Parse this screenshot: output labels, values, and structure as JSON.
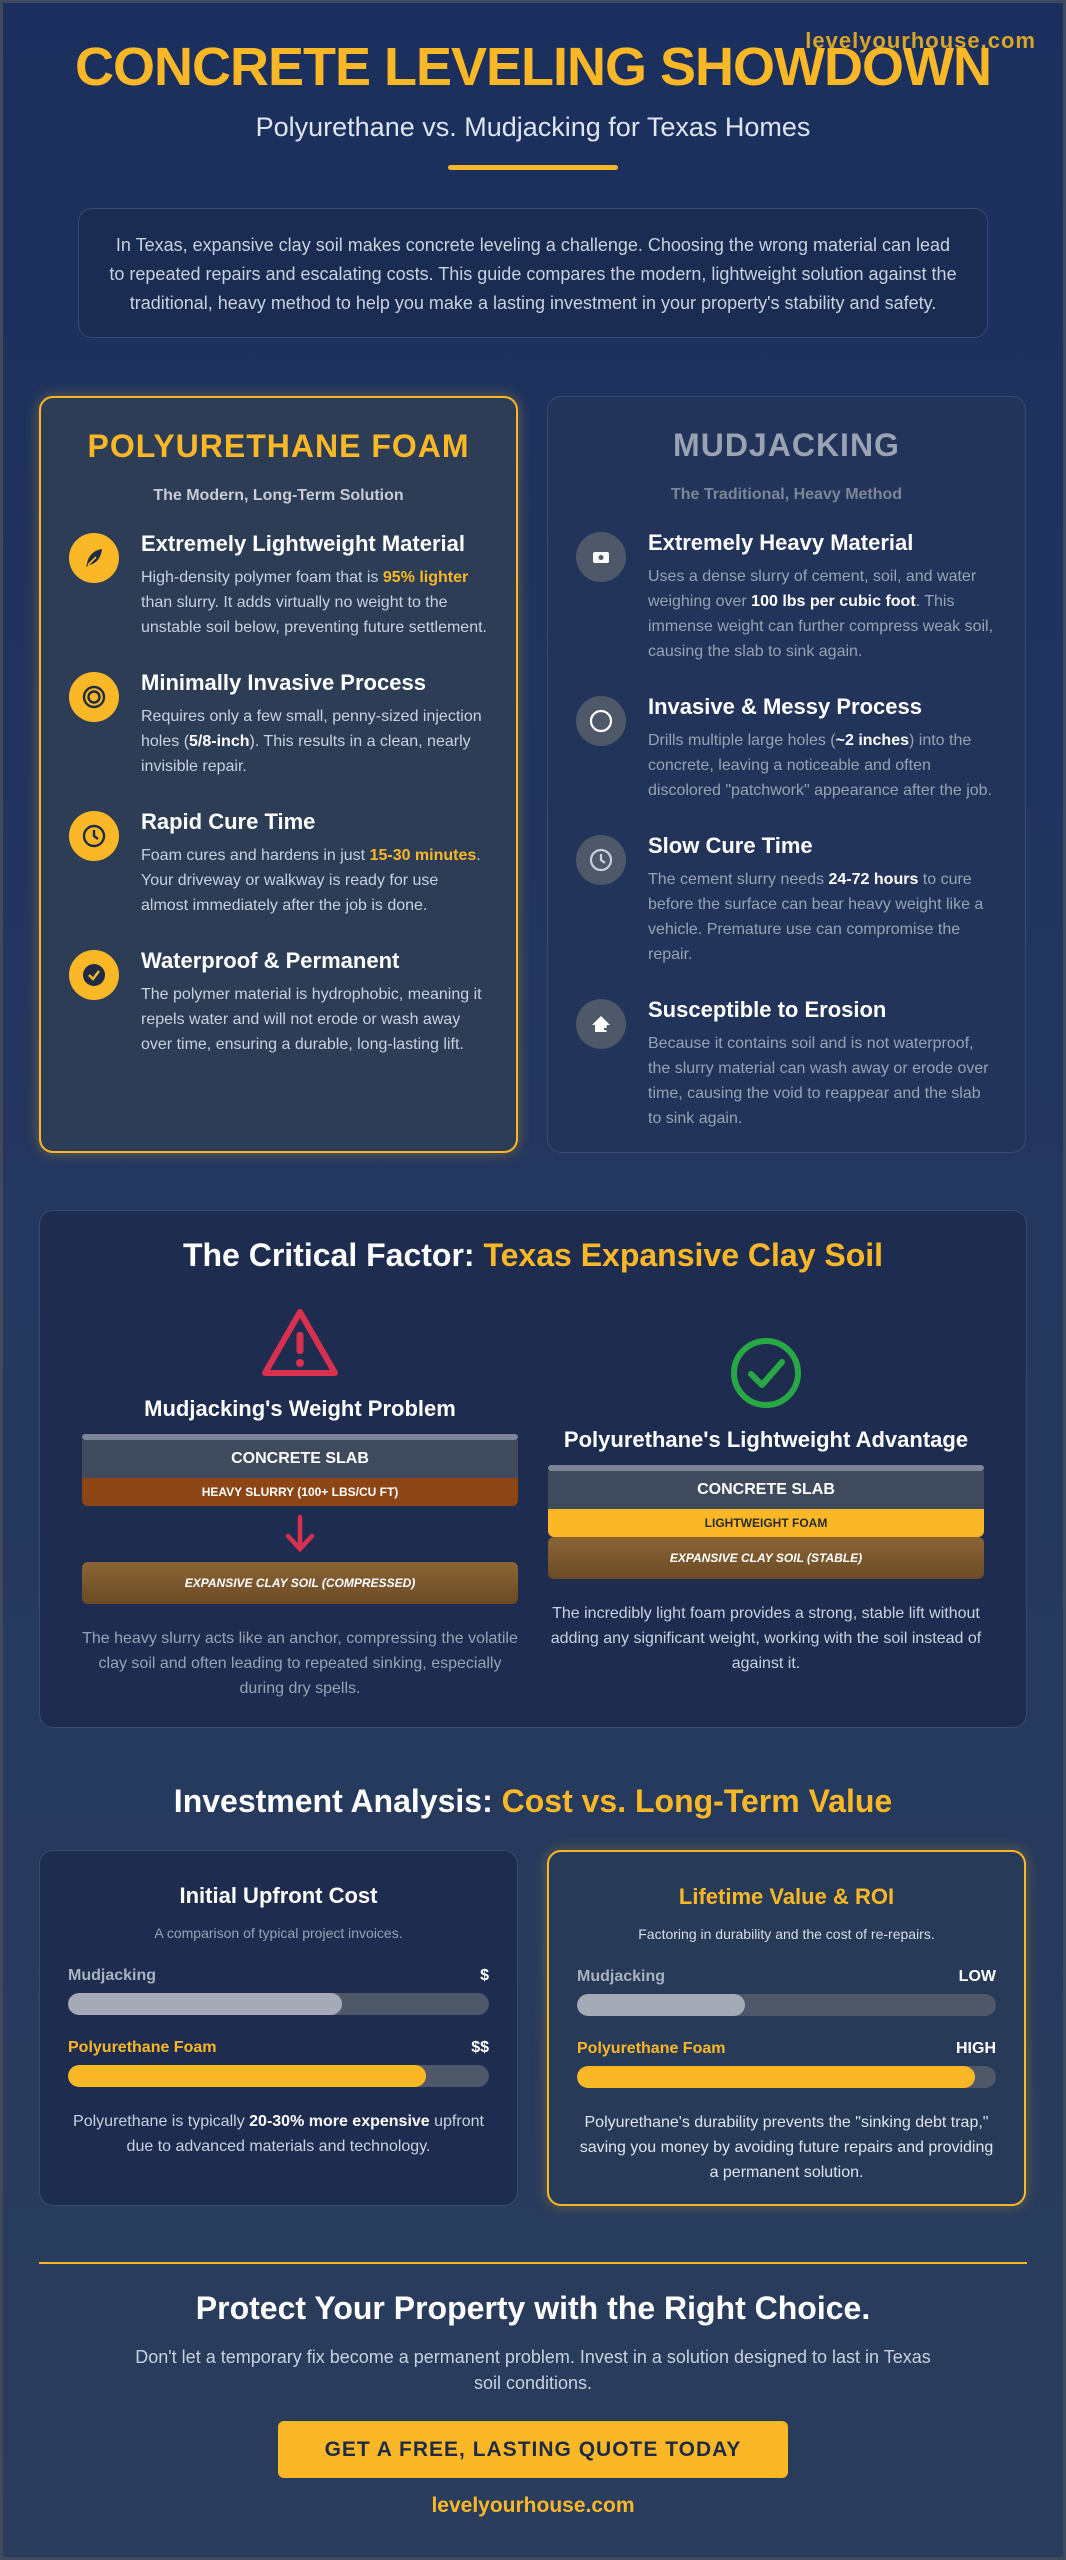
{
  "site": {
    "top": "levelyourhouse.com",
    "bottom": "levelyourhouse.com"
  },
  "header": {
    "title": "CONCRETE LEVELING SHOWDOWN",
    "subtitle": "Polyurethane vs. Mudjacking for Texas Homes"
  },
  "intro": "In Texas, expansive clay soil makes concrete leveling a challenge. Choosing the wrong material can lead to repeated repairs and escalating costs. This guide compares the modern, lightweight solution against the traditional, heavy method to help you make a lasting investment in your property's stability and safety.",
  "poly": {
    "title": "POLYURETHANE FOAM",
    "subtitle": "The Modern, Long-Term Solution",
    "features": [
      {
        "icon": "feather-icon",
        "title": "Extremely Lightweight Material",
        "pre": "High-density polymer foam that is ",
        "hl": "95% lighter",
        "post": " than slurry. It adds virtually no weight to the unstable soil below, preventing future settlement."
      },
      {
        "icon": "target-icon",
        "title": "Minimally Invasive Process",
        "pre": "Requires only a few small, penny-sized injection holes (",
        "hl": "5/8-inch",
        "post": "). This results in a clean, nearly invisible repair."
      },
      {
        "icon": "clock-icon",
        "title": "Rapid Cure Time",
        "pre": "Foam cures and hardens in just ",
        "hl": "15-30 minutes",
        "post": ". Your driveway or walkway is ready for use almost immediately after the job is done."
      },
      {
        "icon": "check-circle-icon",
        "title": "Waterproof & Permanent",
        "pre": "The polymer material is hydrophobic, meaning it repels water and will not erode or wash away over time, ensuring a durable, long-lasting lift.",
        "hl": "",
        "post": ""
      }
    ]
  },
  "mud": {
    "title": "MUDJACKING",
    "subtitle": "The Traditional, Heavy Method",
    "features": [
      {
        "icon": "weight-icon",
        "title": "Extremely Heavy Material",
        "pre": "Uses a dense slurry of cement, soil, and water weighing over ",
        "hl": "100 lbs per cubic foot",
        "post": ". This immense weight can further compress weak soil, causing the slab to sink again."
      },
      {
        "icon": "circle-icon",
        "title": "Invasive & Messy Process",
        "pre": "Drills multiple large holes (",
        "hl": "~2 inches",
        "post": ") into the concrete, leaving a noticeable and often discolored \"patchwork\" appearance after the job."
      },
      {
        "icon": "clock-icon",
        "title": "Slow Cure Time",
        "pre": "The cement slurry needs ",
        "hl": "24-72 hours",
        "post": " to cure before the surface can bear heavy weight like a vehicle. Premature use can compromise the repair."
      },
      {
        "icon": "erosion-icon",
        "title": "Susceptible to Erosion",
        "pre": "Because it contains soil and is not waterproof, the slurry material can wash away or erode over time, causing the void to reappear and the slab to sink again.",
        "hl": "",
        "post": ""
      }
    ]
  },
  "critical": {
    "title_a": "The Critical Factor: ",
    "title_b": "Texas Expansive Clay Soil",
    "left": {
      "heading": "Mudjacking's Weight Problem",
      "slab": "CONCRETE SLAB",
      "slurry": "HEAVY SLURRY (100+ LBS/CU FT)",
      "soil": "EXPANSIVE CLAY SOIL (COMPRESSED)",
      "text": "The heavy slurry acts like an anchor, compressing the volatile clay soil and often leading to repeated sinking, especially during dry spells."
    },
    "right": {
      "heading": "Polyurethane's Lightweight Advantage",
      "slab": "CONCRETE SLAB",
      "foam": "LIGHTWEIGHT FOAM",
      "soil": "EXPANSIVE CLAY SOIL (STABLE)",
      "text": "The incredibly light foam provides a strong, stable lift without adding any significant weight, working with the soil instead of against it."
    }
  },
  "investment": {
    "title_a": "Investment Analysis: ",
    "title_b": "Cost vs. Long-Term Value",
    "cost": {
      "title": "Initial Upfront Cost",
      "subtitle": "A comparison of typical project invoices.",
      "bars": [
        {
          "name": "Mudjacking",
          "label": "$",
          "fraction": 0.65
        },
        {
          "name": "Polyurethane Foam",
          "label": "$$",
          "fraction": 0.85
        }
      ],
      "note_pre": "Polyurethane is typically ",
      "note_b": "20-30% more expensive",
      "note_post": " upfront due to advanced materials and technology."
    },
    "value": {
      "title": "Lifetime Value & ROI",
      "subtitle": "Factoring in durability and the cost of re-repairs.",
      "bars": [
        {
          "name": "Mudjacking",
          "label": "LOW",
          "fraction": 0.4
        },
        {
          "name": "Polyurethane Foam",
          "label": "HIGH",
          "fraction": 0.95
        }
      ],
      "note": "Polyurethane's durability prevents the \"sinking debt trap,\" saving you money by avoiding future repairs and providing a permanent solution."
    }
  },
  "footer": {
    "title": "Protect Your Property with the Right Choice.",
    "text": "Don't let a temporary fix become a permanent problem. Invest in a solution designed to last in Texas soil conditions.",
    "cta": "GET A FREE, LASTING QUOTE TODAY"
  },
  "colors": {
    "accent": "#fbb826",
    "warning": "#d9304f",
    "success": "#28a745",
    "slurry": "#8c4515"
  }
}
